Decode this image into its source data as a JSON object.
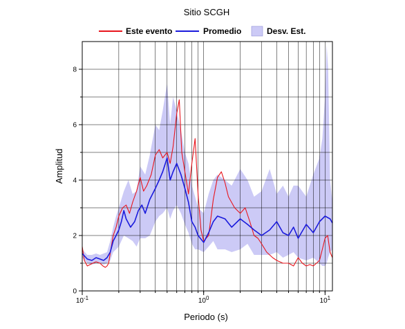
{
  "chart_data": {
    "type": "line",
    "title": "Sitio SCGH",
    "xlabel": "Periodo (s)",
    "ylabel": "Amplitud",
    "x_scale": "log",
    "xlim": [
      0.1,
      11.5
    ],
    "ylim": [
      0,
      9
    ],
    "grid": true,
    "legend_position": "top",
    "x_tick_labels": [
      {
        "value": 0.1,
        "base": "10",
        "exp": "-1"
      },
      {
        "value": 1,
        "base": "10",
        "exp": "0"
      },
      {
        "value": 10,
        "base": "10",
        "exp": "1"
      }
    ],
    "y_ticks": [
      0,
      2,
      4,
      6,
      8
    ],
    "y_tick_labels": [
      "0",
      "2",
      "4",
      "6",
      "8"
    ],
    "series": [
      {
        "name": "Este evento",
        "color": "#e8141c",
        "x": [
          0.1,
          0.104,
          0.11,
          0.116,
          0.122,
          0.13,
          0.14,
          0.148,
          0.155,
          0.16,
          0.165,
          0.172,
          0.18,
          0.19,
          0.2,
          0.215,
          0.23,
          0.245,
          0.26,
          0.28,
          0.3,
          0.32,
          0.34,
          0.37,
          0.4,
          0.43,
          0.46,
          0.5,
          0.53,
          0.56,
          0.6,
          0.63,
          0.66,
          0.7,
          0.75,
          0.8,
          0.85,
          0.9,
          0.95,
          1.0,
          1.1,
          1.2,
          1.3,
          1.4,
          1.5,
          1.6,
          1.8,
          2.0,
          2.2,
          2.4,
          2.6,
          2.8,
          3.0,
          3.3,
          3.7,
          4.0,
          4.5,
          5.0,
          5.5,
          6.0,
          6.5,
          7.0,
          7.5,
          8.0,
          8.5,
          9.0,
          9.5,
          10.0,
          10.5,
          11.0,
          11.5
        ],
        "y": [
          1.6,
          1.1,
          0.9,
          0.95,
          1.0,
          1.05,
          1.0,
          0.9,
          0.85,
          0.9,
          1.0,
          1.5,
          2.0,
          2.3,
          2.7,
          3.0,
          3.1,
          2.8,
          3.2,
          3.6,
          4.1,
          3.6,
          3.8,
          4.2,
          4.9,
          5.1,
          4.8,
          5.0,
          4.6,
          5.2,
          6.4,
          6.9,
          5.0,
          4.3,
          3.5,
          4.6,
          5.5,
          3.5,
          2.2,
          1.8,
          2.0,
          3.3,
          4.1,
          4.3,
          3.9,
          3.4,
          3.0,
          2.8,
          3.0,
          2.5,
          2.0,
          1.9,
          1.7,
          1.4,
          1.2,
          1.1,
          1.0,
          1.0,
          0.9,
          1.2,
          1.0,
          0.9,
          0.95,
          0.9,
          1.0,
          1.1,
          1.5,
          1.9,
          2.0,
          1.4,
          1.2
        ]
      },
      {
        "name": "Promedio",
        "color": "#1a1adc",
        "x": [
          0.1,
          0.11,
          0.12,
          0.13,
          0.14,
          0.15,
          0.16,
          0.17,
          0.18,
          0.19,
          0.2,
          0.21,
          0.22,
          0.23,
          0.25,
          0.27,
          0.29,
          0.31,
          0.33,
          0.36,
          0.4,
          0.43,
          0.46,
          0.5,
          0.53,
          0.56,
          0.6,
          0.65,
          0.7,
          0.75,
          0.8,
          0.85,
          0.9,
          1.0,
          1.1,
          1.2,
          1.3,
          1.5,
          1.7,
          2.0,
          2.3,
          2.6,
          3.0,
          3.5,
          4.0,
          4.5,
          5.0,
          5.5,
          6.0,
          7.0,
          8.0,
          9.0,
          10.0,
          11.0,
          11.5
        ],
        "y": [
          1.35,
          1.15,
          1.1,
          1.2,
          1.15,
          1.1,
          1.2,
          1.4,
          1.8,
          2.0,
          2.2,
          2.5,
          2.9,
          2.6,
          2.3,
          2.5,
          2.9,
          3.1,
          2.8,
          3.3,
          3.7,
          4.0,
          4.3,
          4.8,
          4.0,
          4.3,
          4.6,
          4.2,
          3.7,
          3.2,
          2.5,
          2.3,
          2.0,
          1.75,
          2.1,
          2.5,
          2.7,
          2.6,
          2.3,
          2.6,
          2.4,
          2.2,
          2.0,
          2.2,
          2.5,
          2.1,
          2.0,
          2.3,
          1.9,
          2.4,
          2.1,
          2.5,
          2.7,
          2.6,
          2.45
        ]
      }
    ],
    "band": {
      "name": "Desv. Est.",
      "color": "#cccaf6",
      "x": [
        0.1,
        0.11,
        0.12,
        0.13,
        0.14,
        0.15,
        0.16,
        0.17,
        0.18,
        0.19,
        0.2,
        0.22,
        0.24,
        0.26,
        0.28,
        0.3,
        0.33,
        0.36,
        0.4,
        0.43,
        0.46,
        0.5,
        0.53,
        0.56,
        0.6,
        0.65,
        0.7,
        0.75,
        0.8,
        0.85,
        0.9,
        1.0,
        1.1,
        1.2,
        1.3,
        1.5,
        1.7,
        2.0,
        2.3,
        2.6,
        3.0,
        3.5,
        4.0,
        4.5,
        5.0,
        5.5,
        6.0,
        7.0,
        8.0,
        9.0,
        9.5,
        10.0,
        10.3,
        10.6,
        11.0,
        11.5
      ],
      "upper": [
        1.5,
        1.3,
        1.3,
        1.35,
        1.3,
        1.35,
        1.4,
        1.8,
        2.3,
        2.7,
        3.0,
        3.6,
        4.0,
        3.5,
        3.6,
        4.5,
        4.2,
        4.9,
        6.0,
        5.8,
        6.5,
        7.5,
        6.0,
        7.0,
        6.5,
        5.8,
        5.0,
        4.6,
        3.8,
        3.4,
        3.0,
        2.8,
        3.5,
        4.0,
        4.2,
        4.0,
        3.8,
        4.4,
        4.0,
        3.4,
        3.6,
        4.4,
        3.5,
        3.8,
        3.4,
        3.8,
        3.8,
        3.4,
        4.2,
        4.8,
        5.5,
        7.0,
        8.9,
        8.0,
        4.0,
        3.2
      ],
      "lower": [
        1.2,
        1.0,
        0.95,
        1.0,
        1.0,
        0.95,
        1.0,
        1.1,
        1.4,
        1.5,
        1.6,
        2.0,
        1.9,
        1.8,
        1.6,
        1.9,
        1.9,
        2.0,
        2.5,
        2.7,
        2.8,
        3.0,
        2.6,
        2.9,
        3.1,
        2.8,
        2.4,
        2.1,
        1.7,
        1.5,
        1.5,
        1.4,
        1.6,
        1.8,
        1.5,
        1.5,
        1.4,
        1.5,
        1.7,
        1.3,
        1.3,
        1.3,
        1.4,
        1.2,
        1.3,
        1.4,
        1.2,
        1.1,
        1.2,
        1.0,
        0.9,
        0.9,
        1.0,
        1.2,
        1.4,
        1.5
      ]
    }
  }
}
